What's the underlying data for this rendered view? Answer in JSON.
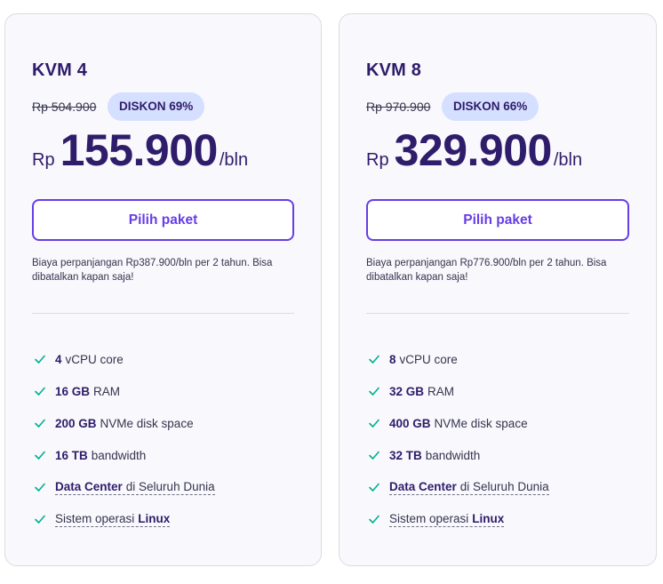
{
  "plans": [
    {
      "name": "KVM 4",
      "old_price": "Rp 504.900",
      "discount": "DISKON 69%",
      "currency": "Rp",
      "price": "155.900",
      "period": "/bln",
      "cta": "Pilih paket",
      "renewal": "Biaya perpanjangan Rp387.900/bln per 2 tahun. Bisa dibatalkan kapan saja!",
      "features": {
        "cpu_value": "4",
        "cpu_label": "vCPU core",
        "ram_value": "16 GB",
        "ram_label": "RAM",
        "disk_value": "200 GB",
        "disk_label": "NVMe disk space",
        "bw_value": "16 TB",
        "bw_label": "bandwidth",
        "dc_bold": "Data Center",
        "dc_rest": "di Seluruh Dunia",
        "os_rest": "Sistem operasi",
        "os_bold": "Linux"
      }
    },
    {
      "name": "KVM 8",
      "old_price": "Rp 970.900",
      "discount": "DISKON 66%",
      "currency": "Rp",
      "price": "329.900",
      "period": "/bln",
      "cta": "Pilih paket",
      "renewal": "Biaya perpanjangan Rp776.900/bln per 2 tahun. Bisa dibatalkan kapan saja!",
      "features": {
        "cpu_value": "8",
        "cpu_label": "vCPU core",
        "ram_value": "32 GB",
        "ram_label": "RAM",
        "disk_value": "400 GB",
        "disk_label": "NVMe disk space",
        "bw_value": "32 TB",
        "bw_label": "bandwidth",
        "dc_bold": "Data Center",
        "dc_rest": "di Seluruh Dunia",
        "os_rest": "Sistem operasi",
        "os_bold": "Linux"
      }
    }
  ],
  "colors": {
    "accent": "#673de6",
    "heading": "#2f1c6a",
    "badge_bg": "#d5dfff",
    "check": "#00b090"
  },
  "icons": {
    "feature_check": "check-icon"
  }
}
